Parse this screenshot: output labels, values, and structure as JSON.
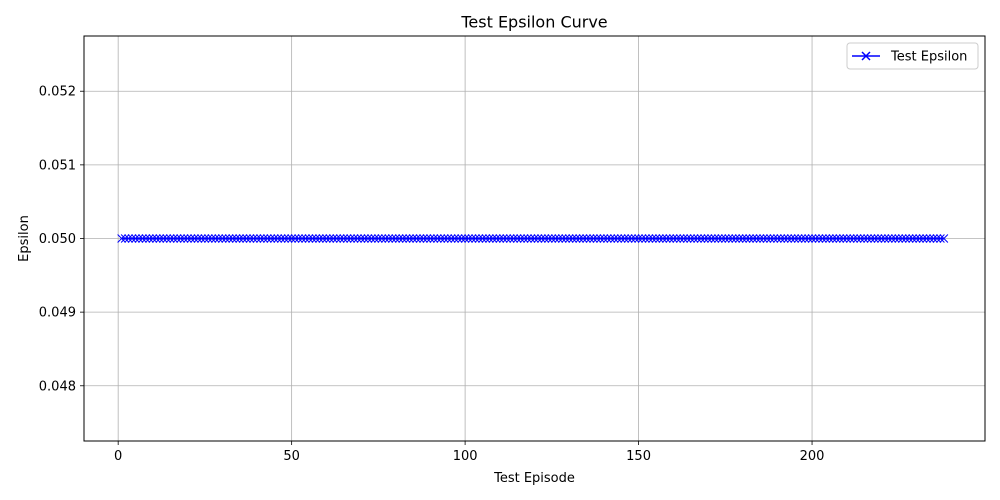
{
  "chart_data": {
    "type": "line",
    "title": "Test Epsilon Curve",
    "xlabel": "Test Episode",
    "ylabel": "Epsilon",
    "x_range": [
      1,
      238
    ],
    "y_value": 0.05,
    "xlim": [
      -9.85,
      249.85
    ],
    "ylim": [
      0.04725,
      0.05275
    ],
    "xticks": [
      0,
      50,
      100,
      150,
      200
    ],
    "yticks": [
      0.048,
      0.049,
      0.05,
      0.051,
      0.052
    ],
    "xtick_labels": [
      "0",
      "50",
      "100",
      "150",
      "200"
    ],
    "ytick_labels": [
      "0.048",
      "0.049",
      "0.050",
      "0.051",
      "0.052"
    ],
    "grid": true,
    "legend_position": "top-right",
    "series": [
      {
        "name": "Test Epsilon",
        "color": "#0000ff",
        "marker": "x-icon"
      }
    ]
  }
}
